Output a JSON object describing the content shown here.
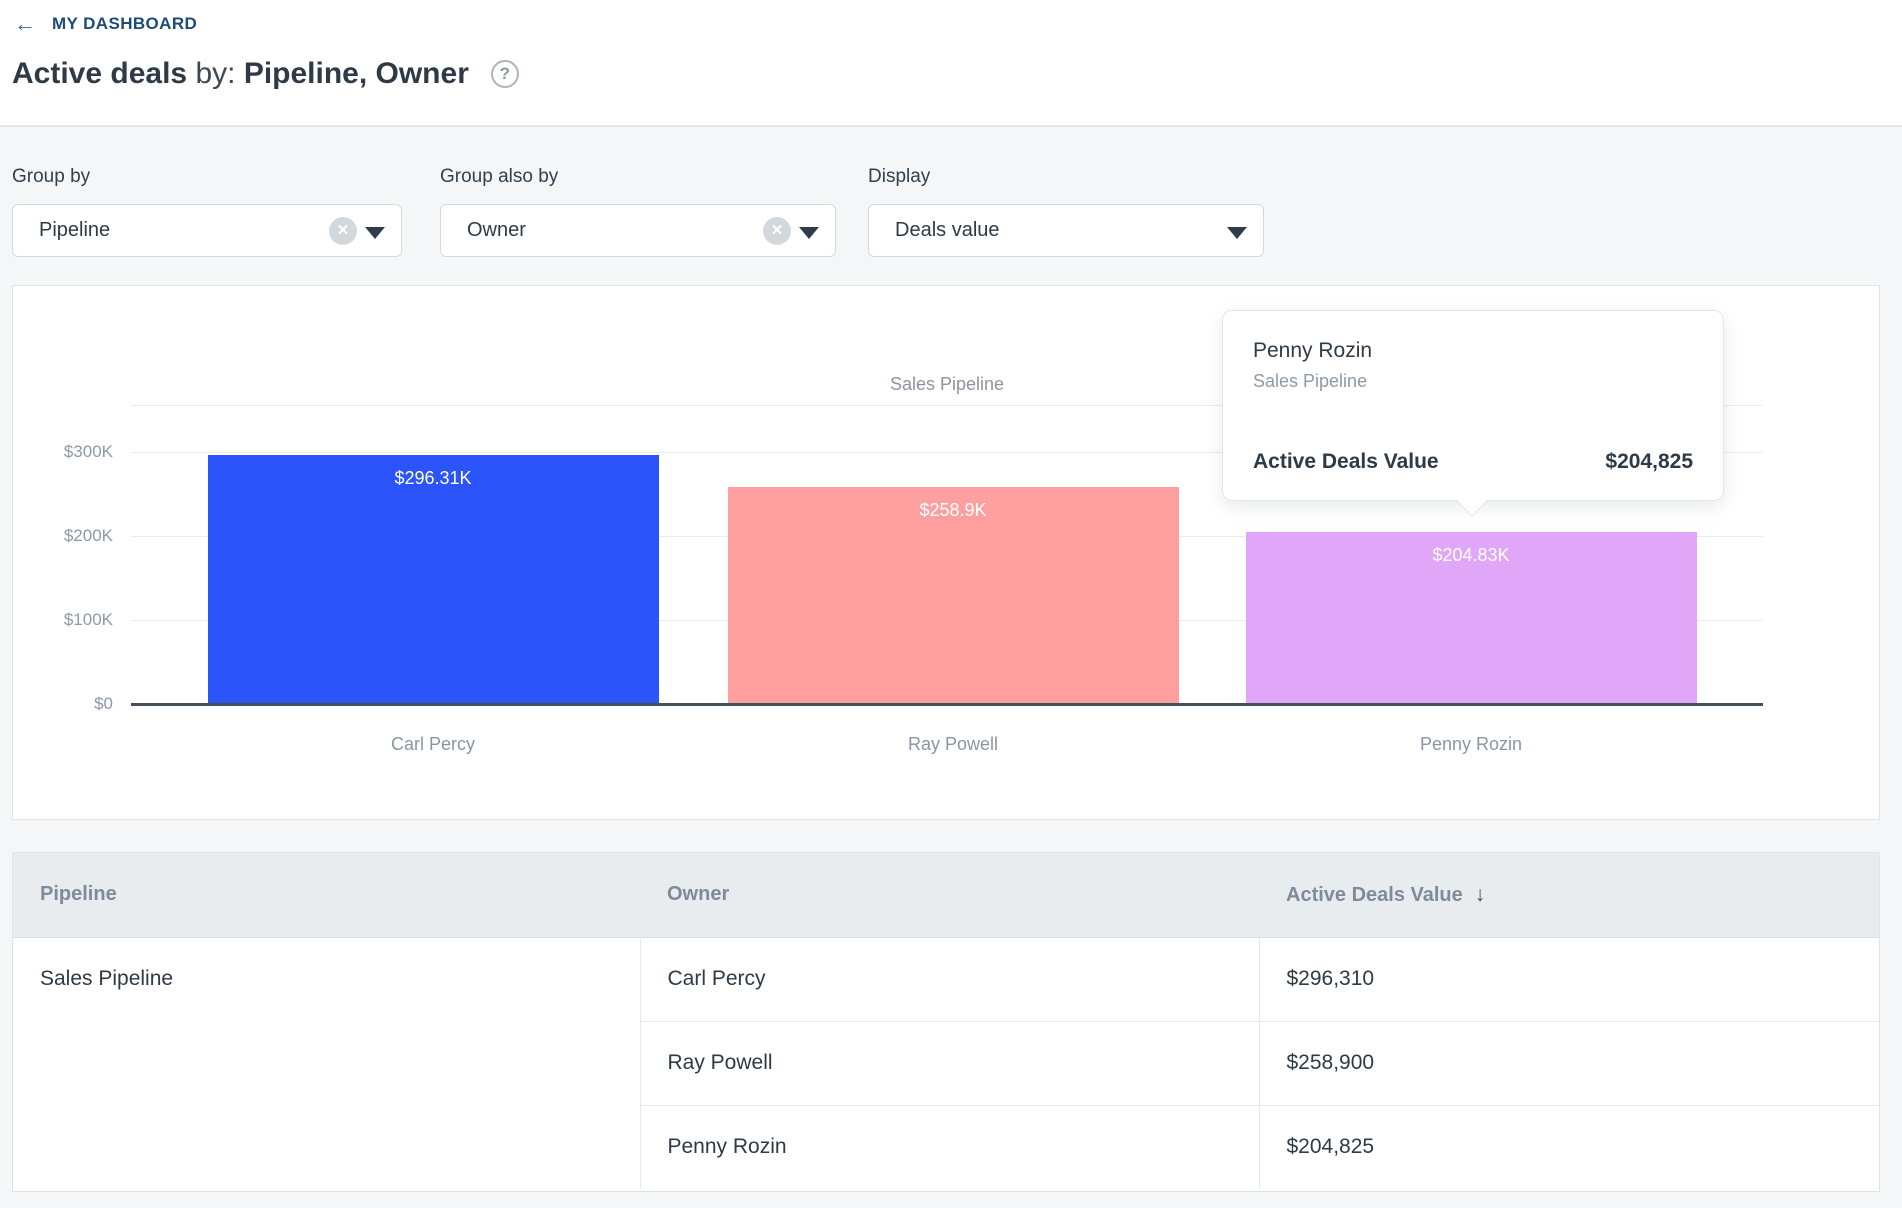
{
  "icons": {
    "back_arrow": "←",
    "help": "?",
    "clear": "✕",
    "sort_desc": "↓"
  },
  "header": {
    "breadcrumb": "MY DASHBOARD",
    "title_bold": "Active deals",
    "title_connector": "by:",
    "title_groups": "Pipeline, Owner"
  },
  "filters": [
    {
      "label": "Group by",
      "value": "Pipeline",
      "clearable": true
    },
    {
      "label": "Group also by",
      "value": "Owner",
      "clearable": true
    },
    {
      "label": "Display",
      "value": "Deals value",
      "clearable": false
    }
  ],
  "chart_data": {
    "type": "bar",
    "title": "Sales Pipeline",
    "categories": [
      "Carl Percy",
      "Ray Powell",
      "Penny Rozin"
    ],
    "values": [
      296310,
      258900,
      204825
    ],
    "bar_labels": [
      "$296.31K",
      "$258.9K",
      "$204.83K"
    ],
    "bar_colors": [
      "#2b54fb",
      "#ff9f9f",
      "#e0a6f8"
    ],
    "y_ticks": [
      "$0",
      "$100K",
      "$200K",
      "$300K"
    ],
    "y_tick_values": [
      0,
      100000,
      200000,
      300000
    ],
    "ylim": [
      0,
      355000
    ],
    "grid": true,
    "xlabel": "",
    "ylabel": "",
    "legend": "none",
    "currency": "USD"
  },
  "tooltip": {
    "name": "Penny Rozin",
    "subtitle": "Sales Pipeline",
    "metric_label": "Active Deals Value",
    "metric_value": "$204,825"
  },
  "table": {
    "columns": [
      "Pipeline",
      "Owner",
      "Active Deals Value"
    ],
    "sorted_by": "Active Deals Value",
    "sort_direction": "desc",
    "pipeline": "Sales Pipeline",
    "rows": [
      {
        "owner": "Carl Percy",
        "value": "$296,310"
      },
      {
        "owner": "Ray Powell",
        "value": "$258,900"
      },
      {
        "owner": "Penny Rozin",
        "value": "$204,825"
      }
    ]
  },
  "colors": {
    "breadcrumb_navy": "#1d4c77",
    "page_background": "#f5f6f8",
    "axis": "#434f5b",
    "table_header_bg": "#e9ecef"
  }
}
